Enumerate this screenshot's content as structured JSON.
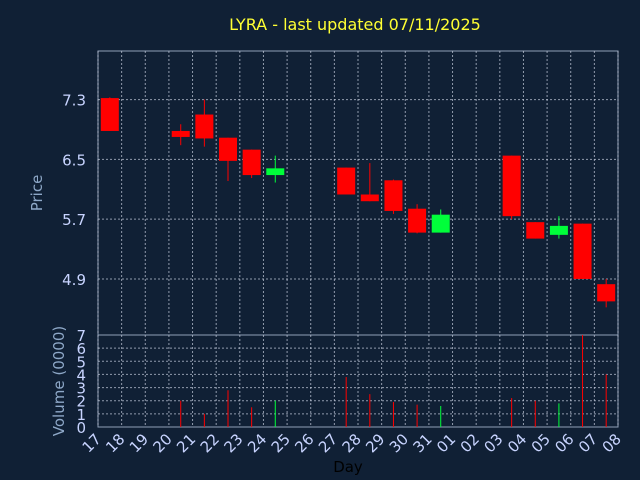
{
  "chart_data": [
    {
      "type": "candlestick",
      "title": "LYRA - last updated 07/11/2025",
      "ylabel": "Price",
      "ylim": [
        4.15,
        7.95
      ],
      "yticks": [
        "7.3",
        "6.5",
        "5.7",
        "4.9"
      ],
      "x": [
        "17",
        "18",
        "19",
        "20",
        "21",
        "22",
        "23",
        "24",
        "25",
        "26",
        "27",
        "28",
        "29",
        "30",
        "31",
        "01",
        "02",
        "03",
        "04",
        "05",
        "06",
        "07",
        "08"
      ],
      "up_color": "#00ff3a",
      "down_color": "#ff0000",
      "grid": true,
      "candles": [
        {
          "x": "17",
          "open": 7.32,
          "high": 7.33,
          "low": 6.88,
          "close": 6.88
        },
        {
          "x": "20",
          "open": 6.88,
          "high": 6.97,
          "low": 6.69,
          "close": 6.8
        },
        {
          "x": "21",
          "open": 7.1,
          "high": 7.3,
          "low": 6.67,
          "close": 6.78
        },
        {
          "x": "22",
          "open": 6.79,
          "high": 6.79,
          "low": 6.21,
          "close": 6.48
        },
        {
          "x": "23",
          "open": 6.63,
          "high": 6.63,
          "low": 6.25,
          "close": 6.29
        },
        {
          "x": "24",
          "open": 6.29,
          "high": 6.55,
          "low": 6.19,
          "close": 6.38
        },
        {
          "x": "27",
          "open": 6.39,
          "high": 6.39,
          "low": 6.03,
          "close": 6.03
        },
        {
          "x": "28",
          "open": 6.03,
          "high": 6.45,
          "low": 5.94,
          "close": 5.94
        },
        {
          "x": "29",
          "open": 6.22,
          "high": 6.23,
          "low": 5.77,
          "close": 5.81
        },
        {
          "x": "30",
          "open": 5.84,
          "high": 5.9,
          "low": 5.51,
          "close": 5.52
        },
        {
          "x": "31",
          "open": 5.52,
          "high": 5.83,
          "low": 5.52,
          "close": 5.76
        },
        {
          "x": "03",
          "open": 6.55,
          "high": 6.55,
          "low": 5.7,
          "close": 5.74
        },
        {
          "x": "04",
          "open": 5.66,
          "high": 5.66,
          "low": 5.44,
          "close": 5.44
        },
        {
          "x": "05",
          "open": 5.49,
          "high": 5.74,
          "low": 5.44,
          "close": 5.61
        },
        {
          "x": "06",
          "open": 5.64,
          "high": 5.64,
          "low": 4.9,
          "close": 4.9
        },
        {
          "x": "07",
          "open": 4.83,
          "high": 4.9,
          "low": 4.52,
          "close": 4.6
        }
      ]
    },
    {
      "type": "bar",
      "ylabel": "Volume (0000)",
      "ylim": [
        0,
        7
      ],
      "yticks": [
        "0",
        "1",
        "2",
        "3",
        "4",
        "5",
        "6",
        "7"
      ],
      "xlabel": "Day",
      "x": [
        "17",
        "18",
        "19",
        "20",
        "21",
        "22",
        "23",
        "24",
        "25",
        "26",
        "27",
        "28",
        "29",
        "30",
        "31",
        "01",
        "02",
        "03",
        "04",
        "05",
        "06",
        "07",
        "08"
      ],
      "bars": [
        {
          "x": "20",
          "value": 2.0,
          "direction": "down"
        },
        {
          "x": "21",
          "value": 1.0,
          "direction": "down"
        },
        {
          "x": "22",
          "value": 2.8,
          "direction": "down"
        },
        {
          "x": "23",
          "value": 1.5,
          "direction": "down"
        },
        {
          "x": "24",
          "value": 2.0,
          "direction": "up"
        },
        {
          "x": "27",
          "value": 3.8,
          "direction": "down"
        },
        {
          "x": "28",
          "value": 2.5,
          "direction": "down"
        },
        {
          "x": "29",
          "value": 1.9,
          "direction": "down"
        },
        {
          "x": "30",
          "value": 1.7,
          "direction": "down"
        },
        {
          "x": "31",
          "value": 1.6,
          "direction": "up"
        },
        {
          "x": "03",
          "value": 2.2,
          "direction": "down"
        },
        {
          "x": "04",
          "value": 2.0,
          "direction": "down"
        },
        {
          "x": "05",
          "value": 1.8,
          "direction": "up"
        },
        {
          "x": "06",
          "value": 7.0,
          "direction": "down"
        },
        {
          "x": "07",
          "value": 4.0,
          "direction": "down"
        }
      ]
    }
  ]
}
